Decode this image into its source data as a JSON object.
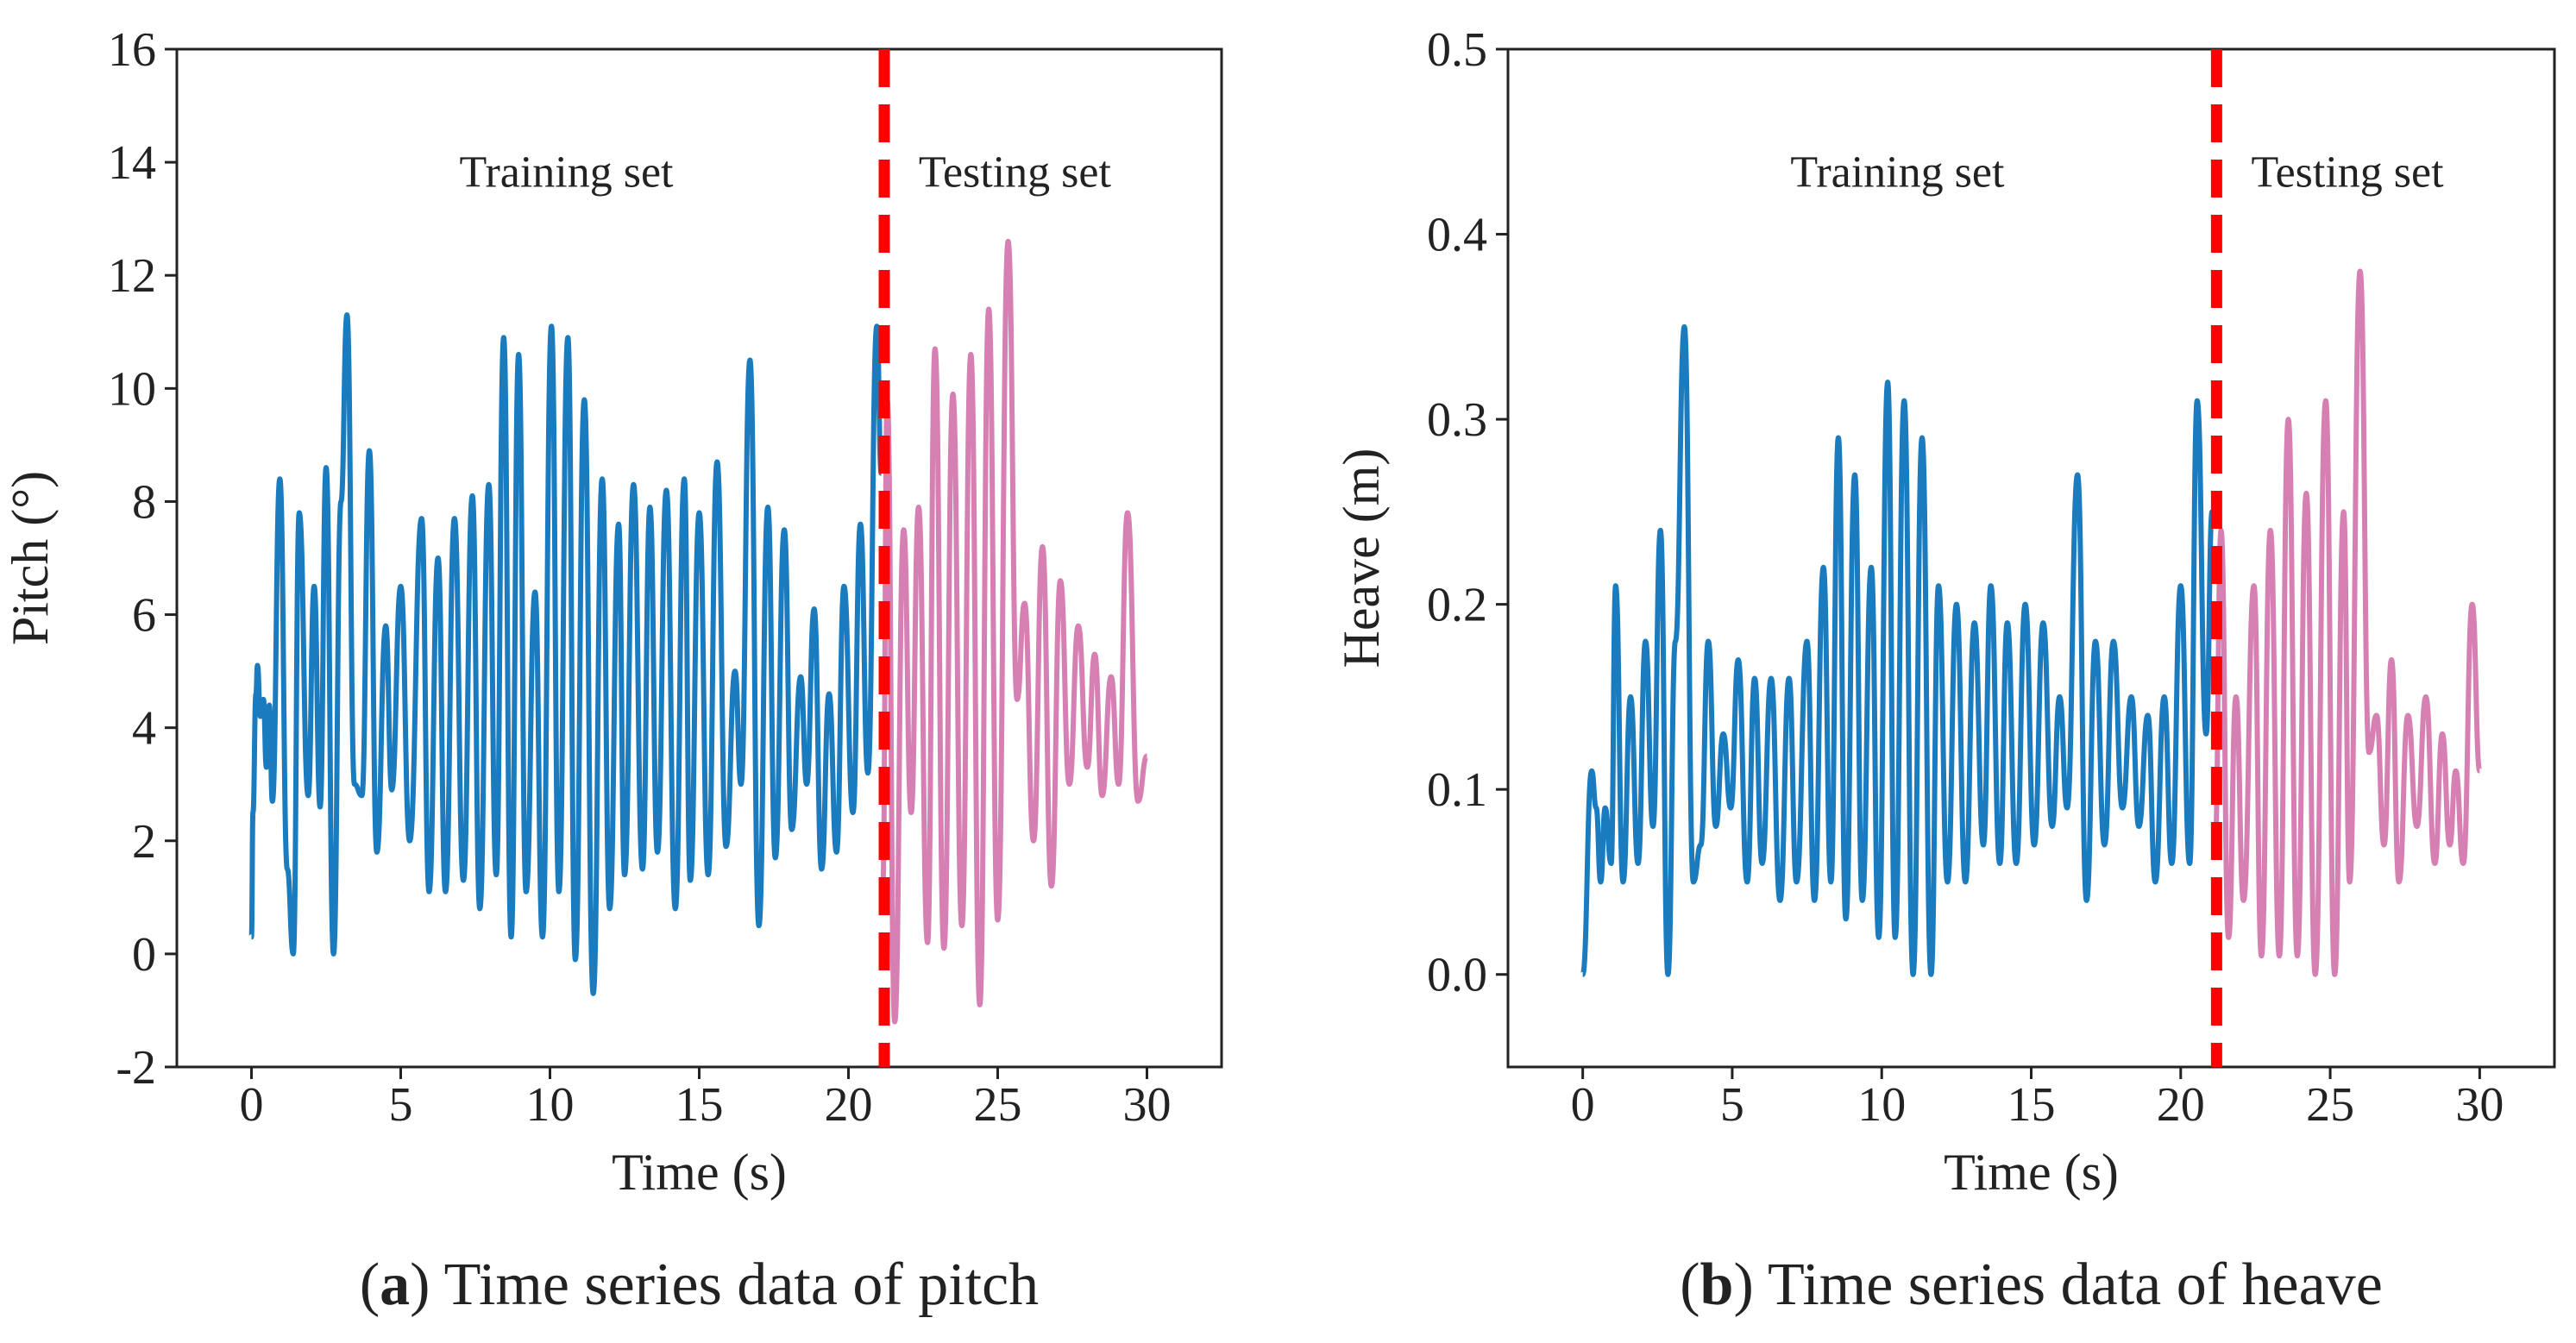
{
  "chart_data": [
    {
      "type": "line",
      "xlabel": "Time (s)",
      "ylabel": "Pitch (°)",
      "xlim": [
        -2.5,
        32.5
      ],
      "xticks": [
        0,
        5,
        10,
        15,
        20,
        25,
        30
      ],
      "ylim": [
        -2,
        16
      ],
      "yticks": [
        -2,
        0,
        2,
        4,
        6,
        8,
        10,
        12,
        14,
        16
      ],
      "series": [
        {
          "name": "Training set",
          "color": "#1a7bbf",
          "x": [
            0,
            0.05,
            0.15,
            0.2,
            0.3,
            0.4,
            0.5,
            0.6,
            0.7,
            0.95,
            1.2,
            1.4,
            1.6,
            1.9,
            2.1,
            2.3,
            2.5,
            2.75,
            3.0,
            3.2,
            3.45,
            3.7,
            3.95,
            4.2,
            4.5,
            4.7,
            5.0,
            5.3,
            5.7,
            5.95,
            6.25,
            6.5,
            6.8,
            7.1,
            7.4,
            7.65,
            7.95,
            8.2,
            8.45,
            8.7,
            8.95,
            9.2,
            9.5,
            9.75,
            10.05,
            10.3,
            10.6,
            10.85,
            11.15,
            11.45,
            11.75,
            12.0,
            12.3,
            12.5,
            12.8,
            13.1,
            13.35,
            13.6,
            13.9,
            14.2,
            14.5,
            14.7,
            15.0,
            15.3,
            15.6,
            15.9,
            16.2,
            16.4,
            16.7,
            17.0,
            17.3,
            17.55,
            17.85,
            18.1,
            18.4,
            18.6,
            18.85,
            19.1,
            19.35,
            19.6,
            19.85,
            20.15,
            20.4,
            20.65,
            20.95,
            21.1
          ],
          "values": [
            0.3,
            2.5,
            4.6,
            5.1,
            4.2,
            4.5,
            3.3,
            4.4,
            2.7,
            8.4,
            1.5,
            0,
            7.8,
            2.8,
            6.5,
            2.6,
            8.6,
            0,
            8.0,
            11.3,
            3.0,
            2.8,
            8.9,
            1.8,
            5.8,
            2.9,
            6.5,
            2.0,
            7.7,
            1.1,
            7.0,
            1.1,
            7.7,
            1.3,
            8.1,
            0.8,
            8.3,
            1.4,
            10.9,
            0.3,
            10.6,
            1.1,
            6.4,
            0.3,
            11.1,
            1.1,
            10.9,
            -0.1,
            9.8,
            -0.7,
            8.4,
            0.8,
            7.6,
            1.4,
            8.3,
            1.5,
            7.9,
            1.8,
            8.2,
            0.8,
            8.4,
            1.3,
            7.8,
            1.4,
            8.7,
            1.9,
            5.0,
            3.0,
            10.5,
            0.5,
            7.9,
            1.7,
            7.5,
            2.2,
            4.9,
            3.0,
            6.1,
            1.5,
            4.6,
            1.8,
            6.5,
            2.5,
            7.6,
            3.2,
            11.1,
            8.5
          ]
        },
        {
          "name": "Testing set",
          "color": "#d67fb2",
          "x": [
            21.15,
            21.3,
            21.55,
            21.85,
            22.1,
            22.35,
            22.65,
            22.9,
            23.2,
            23.5,
            23.8,
            24.1,
            24.4,
            24.7,
            25.0,
            25.35,
            25.65,
            25.9,
            26.2,
            26.5,
            26.8,
            27.1,
            27.4,
            27.7,
            28.0,
            28.25,
            28.5,
            28.8,
            29.05,
            29.35,
            29.7,
            30.0
          ],
          "values": [
            1.2,
            9.8,
            -1.2,
            7.5,
            2.5,
            7.9,
            0.2,
            10.7,
            0.1,
            9.9,
            0.5,
            10.6,
            -0.9,
            11.4,
            0.6,
            12.6,
            4.5,
            6.2,
            2.0,
            7.2,
            1.2,
            6.6,
            3.0,
            5.8,
            3.3,
            5.3,
            2.8,
            4.9,
            3.0,
            7.8,
            2.7,
            3.5
          ]
        }
      ],
      "vline": {
        "x": 21.2,
        "color": "#ff0000"
      },
      "caption": [
        "(",
        "a",
        ") Time series data of pitch"
      ]
    },
    {
      "type": "line",
      "xlabel": "Time (s)",
      "ylabel": "Heave (m)",
      "xlim": [
        -2.5,
        32.5
      ],
      "xticks": [
        0,
        5,
        10,
        15,
        20,
        25,
        30
      ],
      "ylim": [
        -0.05,
        0.5
      ],
      "yticks": [
        {
          "value": 0,
          "label": "0.0"
        },
        0.1,
        0.2,
        0.3,
        0.4,
        0.5
      ],
      "series": [
        {
          "name": "Training set",
          "color": "#1a7bbf",
          "x": [
            0,
            0.3,
            0.45,
            0.6,
            0.75,
            0.95,
            1.1,
            1.35,
            1.6,
            1.85,
            2.1,
            2.35,
            2.6,
            2.85,
            3.1,
            3.4,
            3.7,
            3.95,
            4.2,
            4.45,
            4.7,
            4.95,
            5.2,
            5.5,
            5.75,
            6.0,
            6.3,
            6.6,
            6.9,
            7.15,
            7.5,
            7.75,
            8.05,
            8.3,
            8.55,
            8.8,
            9.1,
            9.35,
            9.65,
            9.9,
            10.2,
            10.45,
            10.75,
            11.05,
            11.35,
            11.65,
            11.9,
            12.2,
            12.5,
            12.8,
            13.1,
            13.4,
            13.65,
            13.95,
            14.2,
            14.5,
            14.8,
            15.1,
            15.4,
            15.7,
            15.95,
            16.2,
            16.55,
            16.85,
            17.15,
            17.45,
            17.75,
            18.05,
            18.35,
            18.6,
            18.9,
            19.15,
            19.45,
            19.7,
            20.0,
            20.3,
            20.55,
            20.85,
            21.05
          ],
          "values": [
            0.0,
            0.11,
            0.09,
            0.05,
            0.09,
            0.06,
            0.21,
            0.05,
            0.15,
            0.06,
            0.18,
            0.08,
            0.24,
            0.0,
            0.18,
            0.35,
            0.05,
            0.07,
            0.18,
            0.08,
            0.13,
            0.09,
            0.17,
            0.05,
            0.16,
            0.06,
            0.16,
            0.04,
            0.16,
            0.05,
            0.18,
            0.04,
            0.22,
            0.05,
            0.29,
            0.03,
            0.27,
            0.04,
            0.22,
            0.02,
            0.32,
            0.02,
            0.31,
            0.0,
            0.29,
            0.0,
            0.21,
            0.05,
            0.2,
            0.05,
            0.19,
            0.07,
            0.21,
            0.06,
            0.19,
            0.06,
            0.2,
            0.07,
            0.19,
            0.08,
            0.15,
            0.09,
            0.27,
            0.04,
            0.18,
            0.07,
            0.18,
            0.09,
            0.15,
            0.08,
            0.14,
            0.05,
            0.15,
            0.06,
            0.21,
            0.06,
            0.31,
            0.13,
            0.25
          ]
        },
        {
          "name": "Testing set",
          "color": "#d67fb2",
          "x": [
            21.15,
            21.35,
            21.6,
            21.85,
            22.1,
            22.45,
            22.7,
            23.0,
            23.3,
            23.6,
            23.9,
            24.2,
            24.5,
            24.85,
            25.15,
            25.45,
            25.65,
            26.0,
            26.3,
            26.55,
            26.8,
            27.05,
            27.3,
            27.6,
            27.9,
            28.2,
            28.5,
            28.75,
            29.0,
            29.2,
            29.45,
            29.75,
            30.0
          ],
          "values": [
            0.07,
            0.24,
            0.02,
            0.15,
            0.04,
            0.21,
            0.01,
            0.24,
            0.01,
            0.3,
            0.01,
            0.26,
            0.0,
            0.31,
            0.0,
            0.25,
            0.05,
            0.38,
            0.12,
            0.14,
            0.07,
            0.17,
            0.05,
            0.14,
            0.08,
            0.15,
            0.06,
            0.13,
            0.07,
            0.11,
            0.06,
            0.2,
            0.11
          ]
        }
      ],
      "vline": {
        "x": 21.2,
        "color": "#ff0000"
      },
      "caption": [
        "(",
        "b",
        ") Time series data of heave"
      ]
    }
  ]
}
